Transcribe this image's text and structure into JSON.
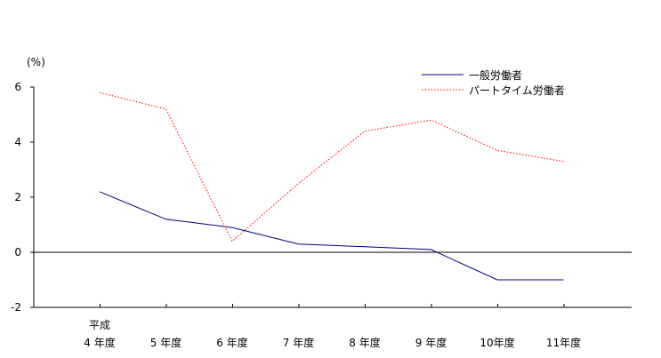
{
  "chart_data": {
    "type": "line",
    "title": "",
    "xlabel": "",
    "ylabel": "(%)",
    "ylim": [
      -2,
      6
    ],
    "yticks": [
      -2,
      0,
      2,
      4,
      6
    ],
    "categories": [
      [
        "平成",
        "4 年度"
      ],
      [
        "5 年度"
      ],
      [
        "6 年度"
      ],
      [
        "7 年度"
      ],
      [
        "8 年度"
      ],
      [
        "9 年度"
      ],
      [
        "10年度"
      ],
      [
        "11年度"
      ]
    ],
    "grid": false,
    "legend": "top-right",
    "series": [
      {
        "name": "一般労働者",
        "values": [
          2.2,
          1.2,
          0.9,
          0.3,
          0.2,
          0.1,
          -1.0,
          -1.0
        ],
        "color": "#000080",
        "dash": "solid"
      },
      {
        "name": "パートタイム労働者",
        "values": [
          5.8,
          5.2,
          0.4,
          2.5,
          4.4,
          4.8,
          3.7,
          3.3
        ],
        "color": "#ff0000",
        "dash": "dotted"
      }
    ]
  }
}
